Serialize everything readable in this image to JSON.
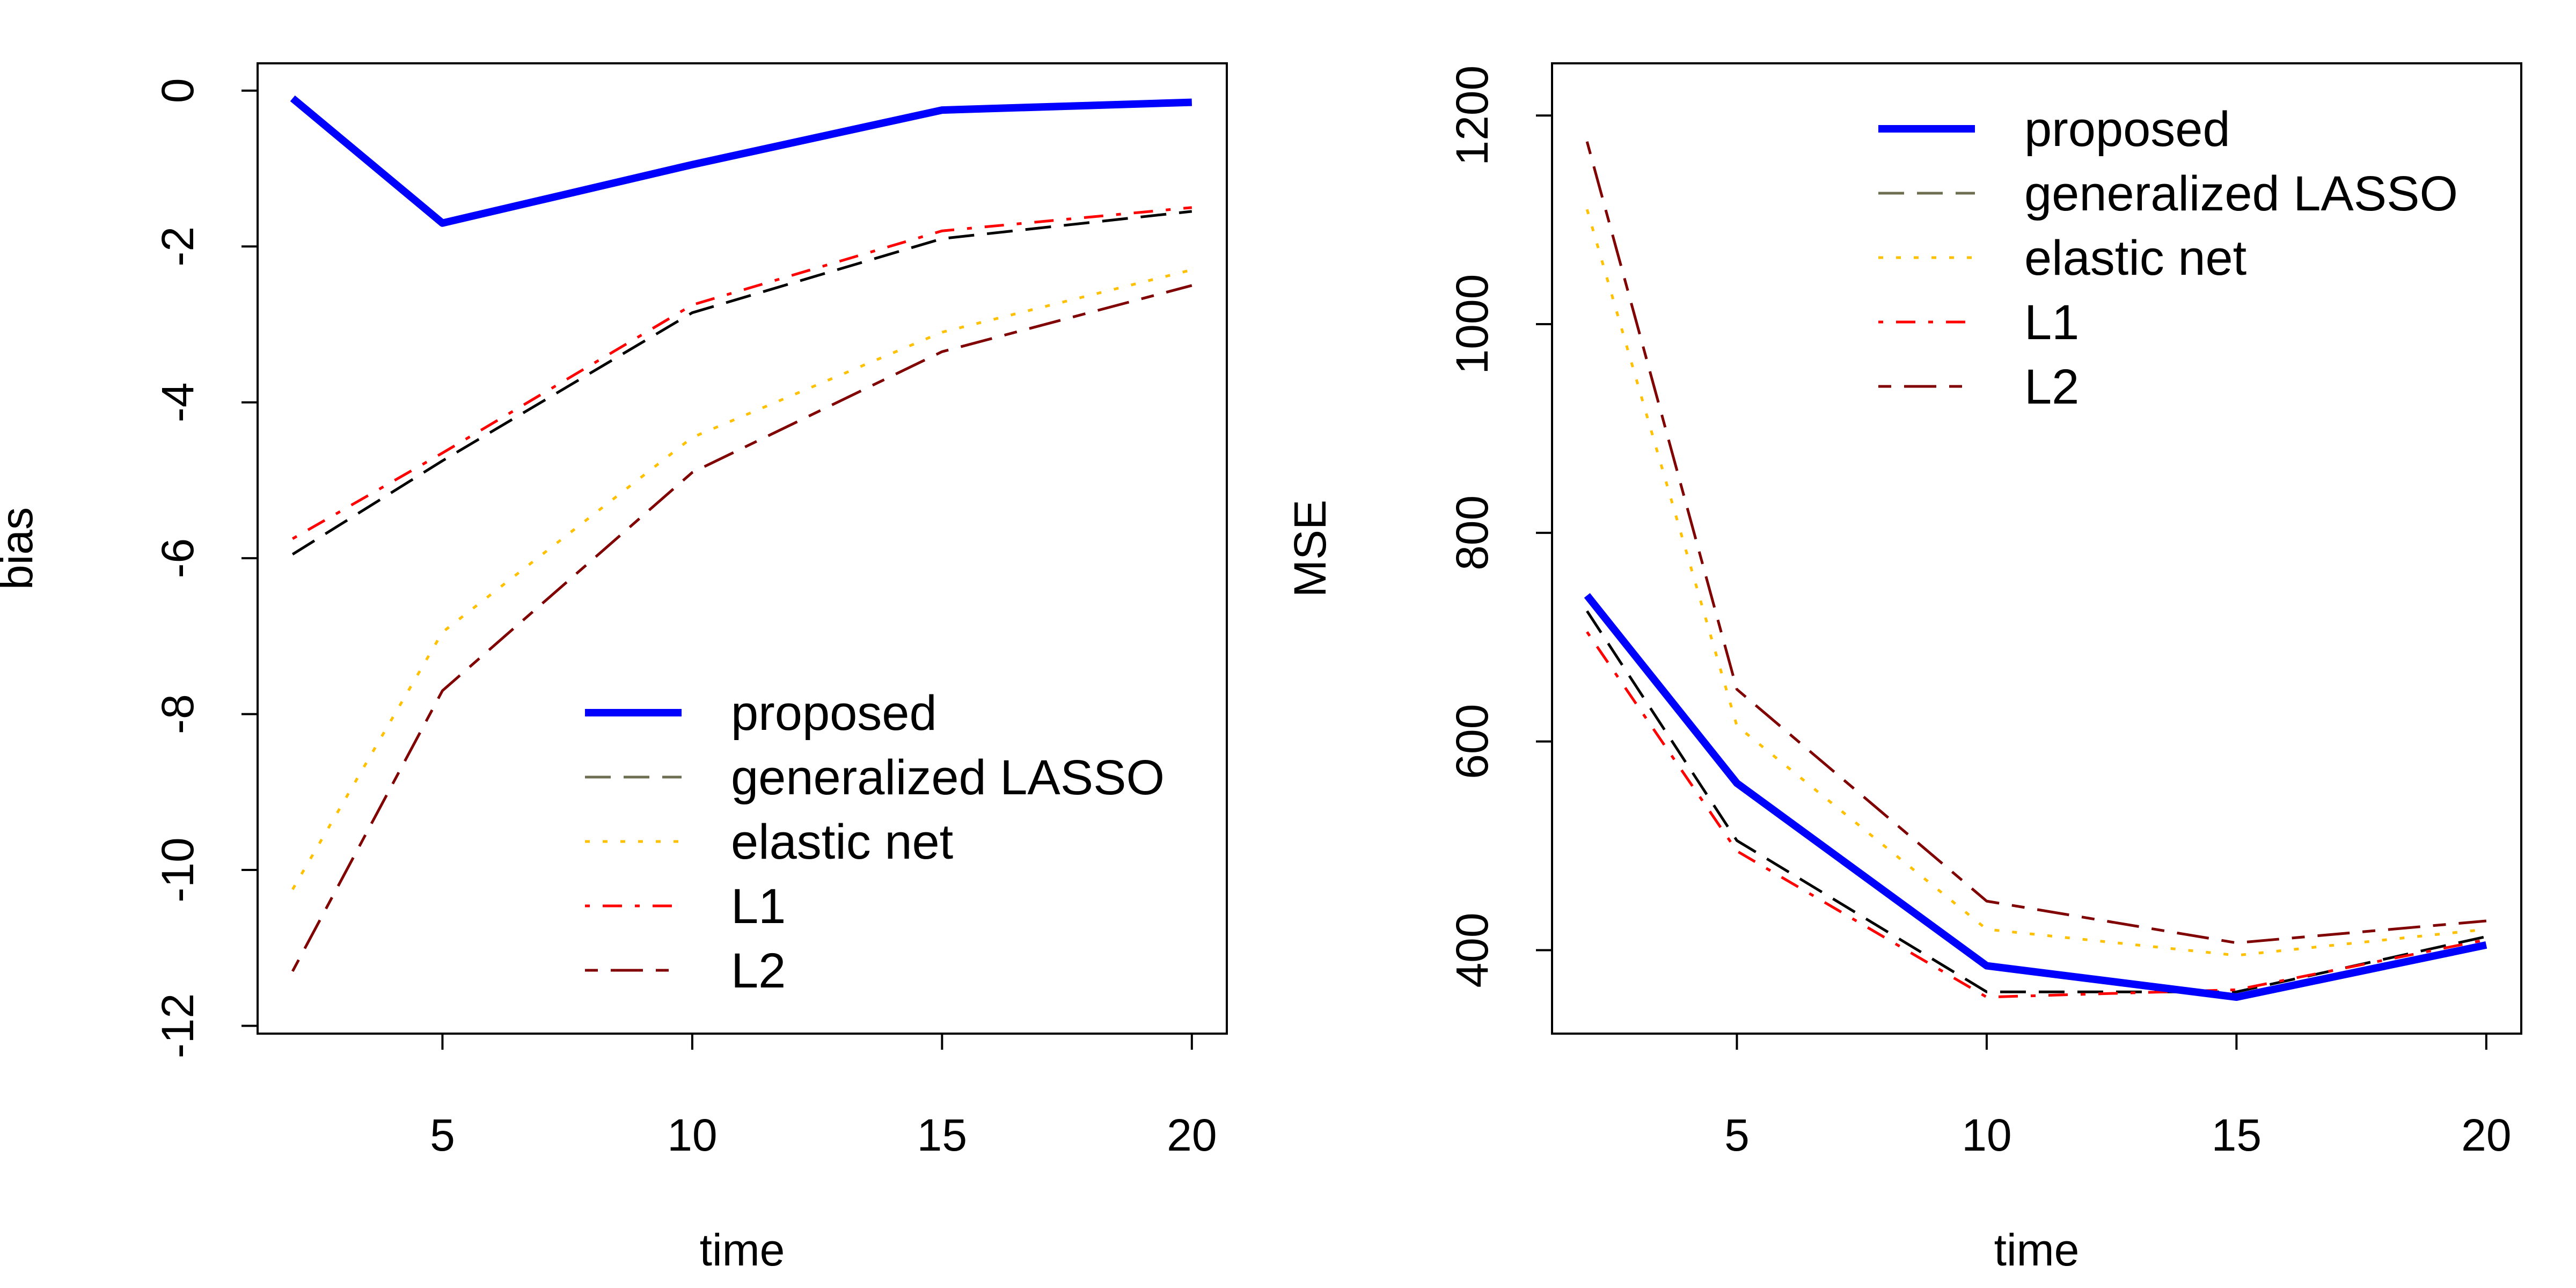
{
  "chart_data": [
    {
      "type": "line",
      "title": "",
      "xlabel": "time",
      "ylabel": "bias",
      "x": [
        2,
        5,
        10,
        15,
        20
      ],
      "xlim": [
        1.3,
        20.7
      ],
      "ylim": [
        -12.1,
        0.35
      ],
      "xticks": [
        5,
        10,
        15,
        20
      ],
      "xtick_labels": [
        "5",
        "10",
        "15",
        "20"
      ],
      "yticks": [
        0,
        -2,
        -4,
        -6,
        -8,
        -10,
        -12
      ],
      "ytick_labels": [
        "0",
        "-2",
        "-4",
        "-6",
        "-8",
        "-10",
        "-12"
      ],
      "legend_position": "bottom-right",
      "grid": false,
      "series": [
        {
          "name": "proposed",
          "color": "#0000ff",
          "line_style": "solid",
          "values": [
            -0.1,
            -1.7,
            -0.95,
            -0.25,
            -0.15
          ]
        },
        {
          "name": "generalized LASSO",
          "color": "#000000",
          "legend_color": "#6e6e50",
          "line_style": "longdash",
          "values": [
            -5.95,
            -4.75,
            -2.85,
            -1.9,
            -1.55
          ]
        },
        {
          "name": "elastic net",
          "color": "#ffc000",
          "line_style": "dotted",
          "values": [
            -10.25,
            -6.95,
            -4.45,
            -3.1,
            -2.3
          ]
        },
        {
          "name": "L1",
          "color": "#ff0000",
          "line_style": "dotdash",
          "values": [
            -5.75,
            -4.65,
            -2.75,
            -1.8,
            -1.5
          ]
        },
        {
          "name": "L2",
          "color": "#800000",
          "line_style": "twodash",
          "values": [
            -11.3,
            -7.7,
            -4.9,
            -3.35,
            -2.5
          ]
        }
      ]
    },
    {
      "type": "line",
      "title": "",
      "xlabel": "time",
      "ylabel": "MSE",
      "x": [
        2,
        5,
        10,
        15,
        20
      ],
      "xlim": [
        1.3,
        20.7
      ],
      "ylim": [
        320,
        1250
      ],
      "xticks": [
        5,
        10,
        15,
        20
      ],
      "xtick_labels": [
        "5",
        "10",
        "15",
        "20"
      ],
      "yticks": [
        400,
        600,
        800,
        1000,
        1200
      ],
      "ytick_labels": [
        "400",
        "600",
        "800",
        "1000",
        "1200"
      ],
      "legend_position": "top-right",
      "grid": false,
      "series": [
        {
          "name": "proposed",
          "color": "#0000ff",
          "line_style": "solid",
          "values": [
            740,
            560,
            385,
            355,
            405
          ]
        },
        {
          "name": "generalized LASSO",
          "color": "#000000",
          "legend_color": "#6e6e50",
          "line_style": "longdash",
          "values": [
            725,
            505,
            360,
            360,
            413
          ]
        },
        {
          "name": "elastic net",
          "color": "#ffc000",
          "line_style": "dotted",
          "values": [
            1110,
            615,
            420,
            395,
            420
          ]
        },
        {
          "name": "L1",
          "color": "#ff0000",
          "line_style": "dotdash",
          "values": [
            705,
            495,
            355,
            362,
            410
          ]
        },
        {
          "name": "L2",
          "color": "#800000",
          "line_style": "twodash",
          "values": [
            1175,
            650,
            447,
            407,
            428
          ]
        }
      ]
    }
  ]
}
